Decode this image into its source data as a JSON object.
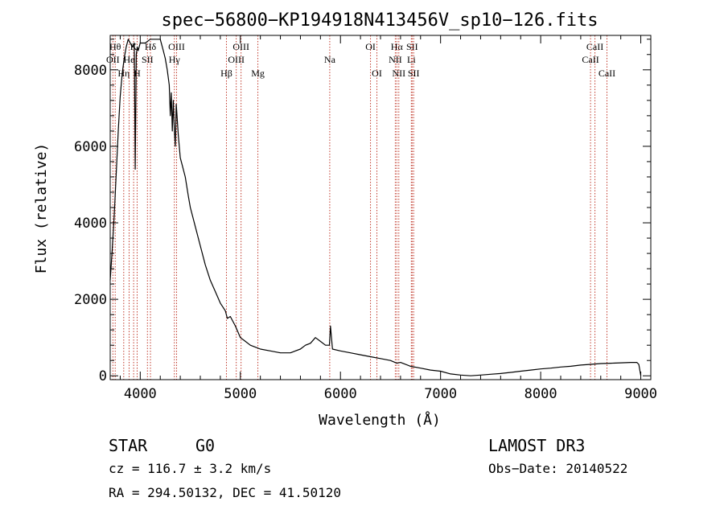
{
  "chart_data": {
    "type": "line",
    "title": "spec−56800−KP194918N413456V_sp10−126.fits",
    "xlabel": "Wavelength (Å)",
    "ylabel": "Flux (relative)",
    "xlim": [
      3700,
      9100
    ],
    "ylim": [
      -100,
      8900
    ],
    "xticks": [
      4000,
      5000,
      6000,
      7000,
      8000,
      9000
    ],
    "yticks": [
      0,
      2000,
      4000,
      6000,
      8000
    ],
    "series": [
      {
        "name": "flux",
        "x": [
          3700,
          3720,
          3740,
          3760,
          3780,
          3800,
          3820,
          3840,
          3860,
          3880,
          3900,
          3920,
          3940,
          3950,
          3960,
          3970,
          3980,
          4000,
          4050,
          4100,
          4150,
          4200,
          4230,
          4250,
          4270,
          4290,
          4300,
          4310,
          4320,
          4330,
          4340,
          4350,
          4360,
          4380,
          4400,
          4420,
          4450,
          4480,
          4500,
          4550,
          4600,
          4650,
          4700,
          4750,
          4800,
          4850,
          4870,
          4900,
          4950,
          5000,
          5050,
          5100,
          5150,
          5200,
          5300,
          5400,
          5500,
          5550,
          5600,
          5650,
          5700,
          5750,
          5800,
          5850,
          5890,
          5900,
          5920,
          6000,
          6100,
          6200,
          6300,
          6400,
          6500,
          6563,
          6600,
          6700,
          6800,
          6900,
          7000,
          7100,
          7200,
          7300,
          7400,
          7500,
          7600,
          7700,
          7800,
          7900,
          8000,
          8100,
          8200,
          8300,
          8400,
          8500,
          8600,
          8700,
          8800,
          8900,
          8960,
          8980,
          9000
        ],
        "y": [
          2500,
          3300,
          4200,
          5300,
          6400,
          7300,
          7900,
          8300,
          8600,
          8800,
          8700,
          8600,
          8700,
          5400,
          8400,
          8600,
          8500,
          8700,
          8700,
          8800,
          8800,
          8800,
          8500,
          8300,
          8000,
          7600,
          6800,
          7400,
          6400,
          7200,
          6500,
          6000,
          7100,
          6300,
          5700,
          5500,
          5200,
          4700,
          4400,
          3900,
          3400,
          2900,
          2500,
          2200,
          1900,
          1700,
          1500,
          1550,
          1300,
          1000,
          900,
          800,
          750,
          700,
          650,
          600,
          600,
          650,
          700,
          800,
          850,
          1000,
          900,
          800,
          800,
          1300,
          700,
          650,
          600,
          550,
          500,
          450,
          400,
          330,
          350,
          250,
          200,
          150,
          120,
          50,
          20,
          0,
          20,
          40,
          60,
          90,
          120,
          150,
          180,
          200,
          230,
          250,
          280,
          300,
          320,
          330,
          340,
          350,
          350,
          300,
          0
        ]
      }
    ],
    "lines": [
      {
        "label": "Hθ",
        "x": 3750,
        "row": 1
      },
      {
        "label": "OII",
        "x": 3727,
        "row": 2
      },
      {
        "label": "Hη",
        "x": 3835,
        "row": 3
      },
      {
        "label": "He",
        "x": 3889,
        "row": 2
      },
      {
        "label": "K",
        "x": 3934,
        "row": 1
      },
      {
        "label": "H",
        "x": 3969,
        "row": 3
      },
      {
        "label": "SII",
        "x": 4072,
        "row": 2
      },
      {
        "label": "Hδ",
        "x": 4102,
        "row": 1
      },
      {
        "label": "OIII",
        "x": 4363,
        "row": 1
      },
      {
        "label": "Hγ",
        "x": 4341,
        "row": 2
      },
      {
        "label": "Hβ",
        "x": 4861,
        "row": 3
      },
      {
        "label": "OIII",
        "x": 4959,
        "row": 2
      },
      {
        "label": "OIII",
        "x": 5007,
        "row": 1
      },
      {
        "label": "Mg",
        "x": 5175,
        "row": 3
      },
      {
        "label": "Na",
        "x": 5893,
        "row": 2
      },
      {
        "label": "OI",
        "x": 6300,
        "row": 1
      },
      {
        "label": "OI",
        "x": 6364,
        "row": 3
      },
      {
        "label": "Hα",
        "x": 6563,
        "row": 1
      },
      {
        "label": "NII",
        "x": 6548,
        "row": 2
      },
      {
        "label": "NII",
        "x": 6583,
        "row": 3
      },
      {
        "label": "SII",
        "x": 6716,
        "row": 1
      },
      {
        "label": "Li",
        "x": 6708,
        "row": 2
      },
      {
        "label": "SII",
        "x": 6731,
        "row": 3
      },
      {
        "label": "CaII",
        "x": 8542,
        "row": 1
      },
      {
        "label": "CaII",
        "x": 8498,
        "row": 2
      },
      {
        "label": "CaII",
        "x": 8662,
        "row": 3
      }
    ],
    "line_color": "#c0392b",
    "plot_color": "#000000"
  },
  "info": {
    "object_class": "STAR",
    "subclass": "G0",
    "survey": "LAMOST DR3",
    "cz": "cz = 116.7 ± 3.2 km/s",
    "obs_date": "Obs−Date: 20140522",
    "radec": "RA = 294.50132, DEC =  41.50120"
  }
}
